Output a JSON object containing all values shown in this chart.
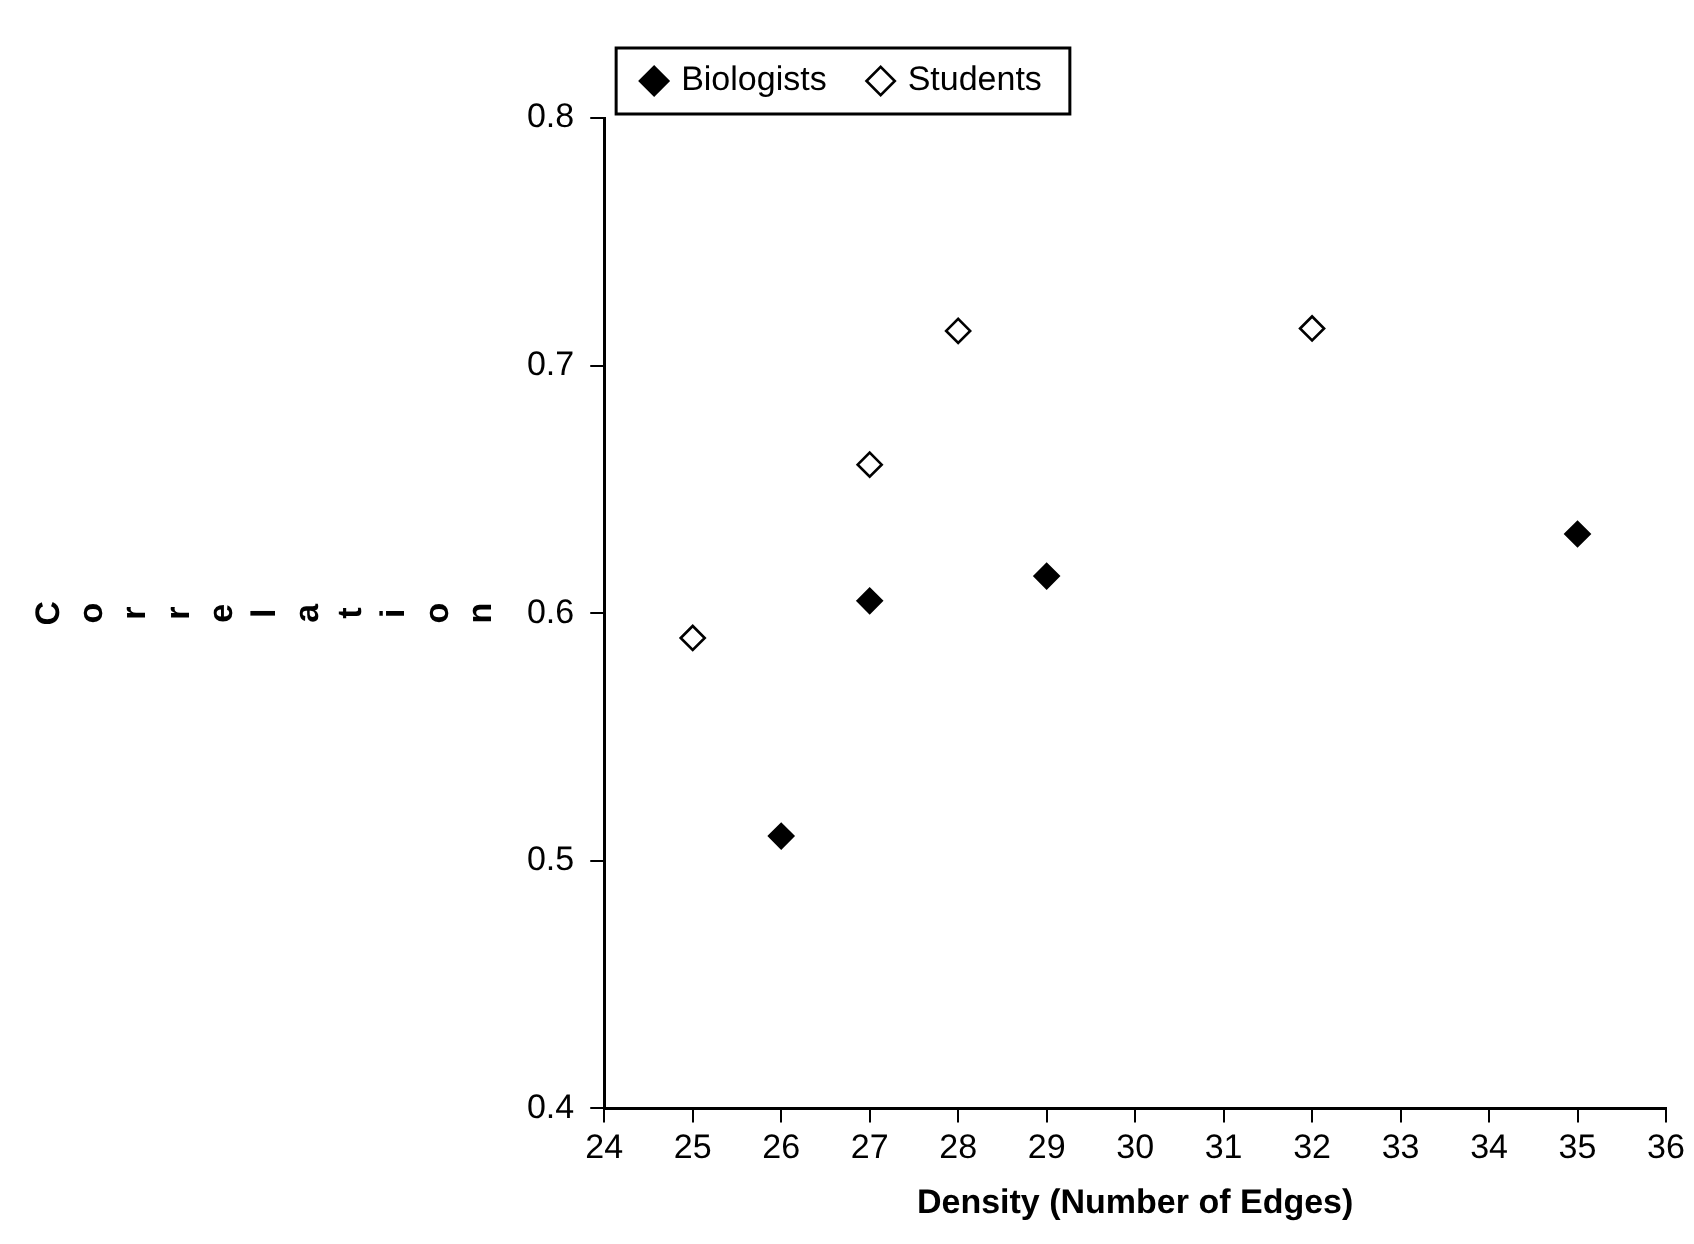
{
  "chart_data": {
    "type": "scatter",
    "xlabel": "Density (Number of Edges)",
    "ylabel": "Correlation",
    "xlim": [
      24,
      36
    ],
    "xticks": [
      24,
      25,
      26,
      27,
      28,
      29,
      30,
      31,
      32,
      33,
      34,
      35,
      36
    ],
    "ylim": [
      0.4,
      0.8
    ],
    "yticks": [
      0.4,
      0.5,
      0.6,
      0.7,
      0.8
    ],
    "grid": false,
    "legend": "top",
    "marker": "diamond",
    "series": [
      {
        "name": "Biologists",
        "color": "#000000",
        "x": [
          26,
          27,
          29,
          35
        ],
        "values": [
          0.51,
          0.605,
          0.615,
          0.632
        ]
      },
      {
        "name": "Students",
        "color": "#ffffff",
        "x": [
          25,
          27,
          28,
          32
        ],
        "values": [
          0.59,
          0.66,
          0.714,
          0.715
        ]
      }
    ]
  }
}
